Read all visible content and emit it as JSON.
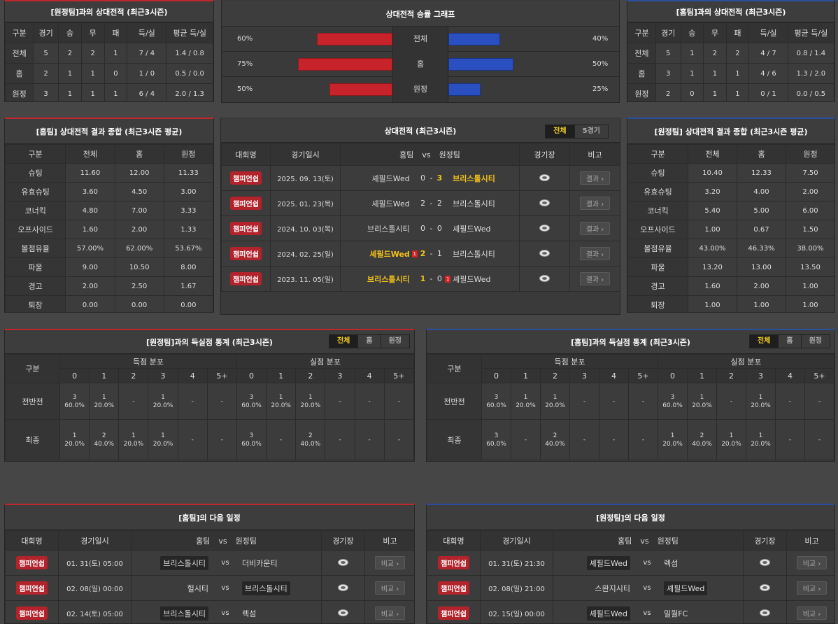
{
  "away_vs": {
    "title": "[원정팀]과의 상대전적 (최근3시즌)",
    "headers": [
      "구분",
      "경기",
      "승",
      "무",
      "패",
      "득/실",
      "평균 득/실"
    ],
    "rows": [
      [
        "전체",
        "5",
        "2",
        "2",
        "1",
        "7 / 4",
        "1.4 / 0.8"
      ],
      [
        "홈",
        "2",
        "1",
        "1",
        "0",
        "1 / 0",
        "0.5 / 0.0"
      ],
      [
        "원정",
        "3",
        "1",
        "1",
        "1",
        "6 / 4",
        "2.0 / 1.3"
      ]
    ]
  },
  "graph": {
    "title": "상대전적 승률 그래프",
    "rows": [
      {
        "label": "전체",
        "left_text": "60%",
        "left_value": 60,
        "right_text": "40%",
        "right_value": 40
      },
      {
        "label": "홈",
        "left_text": "75%",
        "left_value": 75,
        "right_text": "50%",
        "right_value": 50
      },
      {
        "label": "원정",
        "left_text": "50%",
        "left_value": 50,
        "right_text": "25%",
        "right_value": 25
      }
    ]
  },
  "home_vs": {
    "title": "[홈팀]과의 상대전적 (최근3시즌)",
    "headers": [
      "구분",
      "경기",
      "승",
      "무",
      "패",
      "득/실",
      "평균 득/실"
    ],
    "rows": [
      [
        "전체",
        "5",
        "1",
        "2",
        "2",
        "4 / 7",
        "0.8 / 1.4"
      ],
      [
        "홈",
        "3",
        "1",
        "1",
        "1",
        "4 / 6",
        "1.3 / 2.0"
      ],
      [
        "원정",
        "2",
        "0",
        "1",
        "1",
        "0 / 1",
        "0.0 / 0.5"
      ]
    ]
  },
  "home_summary": {
    "title": "[홈팀] 상대전적 결과 종합 (최근3시즌 평균)",
    "headers": [
      "구분",
      "전체",
      "홈",
      "원정"
    ],
    "rows": [
      [
        "슈팅",
        "11.60",
        "12.00",
        "11.33"
      ],
      [
        "유효슈팅",
        "3.60",
        "4.50",
        "3.00"
      ],
      [
        "코너킥",
        "4.80",
        "7.00",
        "3.33"
      ],
      [
        "오프사이드",
        "1.60",
        "2.00",
        "1.33"
      ],
      [
        "볼점유율",
        "57.00%",
        "62.00%",
        "53.67%"
      ],
      [
        "파울",
        "9.00",
        "10.50",
        "8.00"
      ],
      [
        "경고",
        "2.00",
        "2.50",
        "1.67"
      ],
      [
        "퇴장",
        "0.00",
        "0.00",
        "0.00"
      ]
    ]
  },
  "h2h": {
    "title": "상대전적 (최근3시즌)",
    "tabs": [
      "전체",
      "5경기"
    ],
    "headers": {
      "league": "대회명",
      "date": "경기일시",
      "home": "홈팀",
      "vs": "vs",
      "away": "원정팀",
      "stadium": "경기장",
      "note": "비고"
    },
    "button": "결과",
    "matches": [
      {
        "league": "챔피언쉽",
        "date": "2025. 09. 13(토)",
        "home": "셰필드Wed",
        "hs": "0",
        "as": "3",
        "away": "브리스톨시티",
        "hl": "away",
        "hcard": "",
        "acard": ""
      },
      {
        "league": "챔피언쉽",
        "date": "2025. 01. 23(목)",
        "home": "셰필드Wed",
        "hs": "2",
        "as": "2",
        "away": "브리스톨시티",
        "hl": "",
        "hcard": "",
        "acard": ""
      },
      {
        "league": "챔피언쉽",
        "date": "2024. 10. 03(목)",
        "home": "브리스톨시티",
        "hs": "0",
        "as": "0",
        "away": "셰필드Wed",
        "hl": "",
        "hcard": "",
        "acard": ""
      },
      {
        "league": "챔피언쉽",
        "date": "2024. 02. 25(일)",
        "home": "셰필드Wed",
        "hs": "2",
        "as": "1",
        "away": "브리스톨시티",
        "hl": "home",
        "hcard": "1",
        "acard": ""
      },
      {
        "league": "챔피언쉽",
        "date": "2023. 11. 05(일)",
        "home": "브리스톨시티",
        "hs": "1",
        "as": "0",
        "away": "셰필드Wed",
        "hl": "home",
        "hcard": "",
        "acard": "1"
      }
    ]
  },
  "away_summary": {
    "title": "[원정팀] 상대전적 결과 종합 (최근3시즌 평균)",
    "headers": [
      "구분",
      "전체",
      "홈",
      "원정"
    ],
    "rows": [
      [
        "슈팅",
        "10.40",
        "12.33",
        "7.50"
      ],
      [
        "유효슈팅",
        "3.20",
        "4.00",
        "2.00"
      ],
      [
        "코너킥",
        "5.40",
        "5.00",
        "6.00"
      ],
      [
        "오프사이드",
        "1.00",
        "0.67",
        "1.50"
      ],
      [
        "볼점유율",
        "43.00%",
        "46.33%",
        "38.00%"
      ],
      [
        "파울",
        "13.20",
        "13.00",
        "13.50"
      ],
      [
        "경고",
        "1.60",
        "2.00",
        "1.00"
      ],
      [
        "퇴장",
        "1.00",
        "1.00",
        "1.00"
      ]
    ]
  },
  "goals_away": {
    "title": "[원정팀]과의 득실점 통계 (최근3시즌)",
    "tabs": [
      "전체",
      "홈",
      "원정"
    ],
    "col_label": "구분",
    "scored_label": "득점 분포",
    "conceded_label": "실점 분포",
    "cols": [
      "0",
      "1",
      "2",
      "3",
      "4",
      "5+"
    ],
    "rows": [
      {
        "label": "전반전",
        "scored": [
          [
            "3",
            "60.0%"
          ],
          [
            "1",
            "20.0%"
          ],
          [
            "-",
            ""
          ],
          [
            "1",
            "20.0%"
          ],
          [
            "-",
            ""
          ],
          [
            "-",
            ""
          ]
        ],
        "conceded": [
          [
            "3",
            "60.0%"
          ],
          [
            "1",
            "20.0%"
          ],
          [
            "1",
            "20.0%"
          ],
          [
            "-",
            ""
          ],
          [
            "-",
            ""
          ],
          [
            "-",
            ""
          ]
        ]
      },
      {
        "label": "최종",
        "scored": [
          [
            "1",
            "20.0%"
          ],
          [
            "2",
            "40.0%"
          ],
          [
            "1",
            "20.0%"
          ],
          [
            "1",
            "20.0%"
          ],
          [
            "-",
            ""
          ],
          [
            "-",
            ""
          ]
        ],
        "conceded": [
          [
            "3",
            "60.0%"
          ],
          [
            "-",
            ""
          ],
          [
            "2",
            "40.0%"
          ],
          [
            "-",
            ""
          ],
          [
            "-",
            ""
          ],
          [
            "-",
            ""
          ]
        ]
      }
    ]
  },
  "goals_home": {
    "title": "[홈팀]과의 득실점 통계 (최근3시즌)",
    "tabs": [
      "전체",
      "홈",
      "원정"
    ],
    "col_label": "구분",
    "scored_label": "득점 분포",
    "conceded_label": "실점 분포",
    "cols": [
      "0",
      "1",
      "2",
      "3",
      "4",
      "5+"
    ],
    "rows": [
      {
        "label": "전반전",
        "scored": [
          [
            "3",
            "60.0%"
          ],
          [
            "1",
            "20.0%"
          ],
          [
            "1",
            "20.0%"
          ],
          [
            "-",
            ""
          ],
          [
            "-",
            ""
          ],
          [
            "-",
            ""
          ]
        ],
        "conceded": [
          [
            "3",
            "60.0%"
          ],
          [
            "1",
            "20.0%"
          ],
          [
            "-",
            ""
          ],
          [
            "1",
            "20.0%"
          ],
          [
            "-",
            ""
          ],
          [
            "-",
            ""
          ]
        ]
      },
      {
        "label": "최종",
        "scored": [
          [
            "3",
            "60.0%"
          ],
          [
            "-",
            ""
          ],
          [
            "2",
            "40.0%"
          ],
          [
            "-",
            ""
          ],
          [
            "-",
            ""
          ],
          [
            "-",
            ""
          ]
        ],
        "conceded": [
          [
            "1",
            "20.0%"
          ],
          [
            "2",
            "40.0%"
          ],
          [
            "1",
            "20.0%"
          ],
          [
            "1",
            "20.0%"
          ],
          [
            "-",
            ""
          ],
          [
            "-",
            ""
          ]
        ]
      }
    ]
  },
  "next_home": {
    "title": "[홈팀]의 다음 일정",
    "headers": {
      "league": "대회명",
      "date": "경기일시",
      "home": "홈팀",
      "vs": "vs",
      "away": "원정팀",
      "stadium": "경기장",
      "note": "비고"
    },
    "button": "비교",
    "matches": [
      {
        "league": "챔피언쉽",
        "date": "01. 31(토) 05:00",
        "home": "브리스톨시티",
        "away": "더비카운티",
        "box": "home"
      },
      {
        "league": "챔피언쉽",
        "date": "02. 08(일) 00:00",
        "home": "헐시티",
        "away": "브리스톨시티",
        "box": "away"
      },
      {
        "league": "챔피언쉽",
        "date": "02. 14(토) 05:00",
        "home": "브리스톨시티",
        "away": "렉섬",
        "box": "home"
      }
    ]
  },
  "next_away": {
    "title": "[원정팀]의 다음 일정",
    "headers": {
      "league": "대회명",
      "date": "경기일시",
      "home": "홈팀",
      "vs": "vs",
      "away": "원정팀",
      "stadium": "경기장",
      "note": "비고"
    },
    "button": "비교",
    "matches": [
      {
        "league": "챔피언쉽",
        "date": "01. 31(토) 21:30",
        "home": "셰필드Wed",
        "away": "렉섬",
        "box": "home"
      },
      {
        "league": "챔피언쉽",
        "date": "02. 08(일) 21:00",
        "home": "스완지시티",
        "away": "셰필드Wed",
        "box": "away"
      },
      {
        "league": "챔피언쉽",
        "date": "02. 15(일) 00:00",
        "home": "셰필드Wed",
        "away": "밀월FC",
        "box": "home"
      }
    ]
  },
  "colors": {
    "accent_red": "#c0272d",
    "accent_blue": "#2b4f9e",
    "highlight": "#f2c21a"
  }
}
